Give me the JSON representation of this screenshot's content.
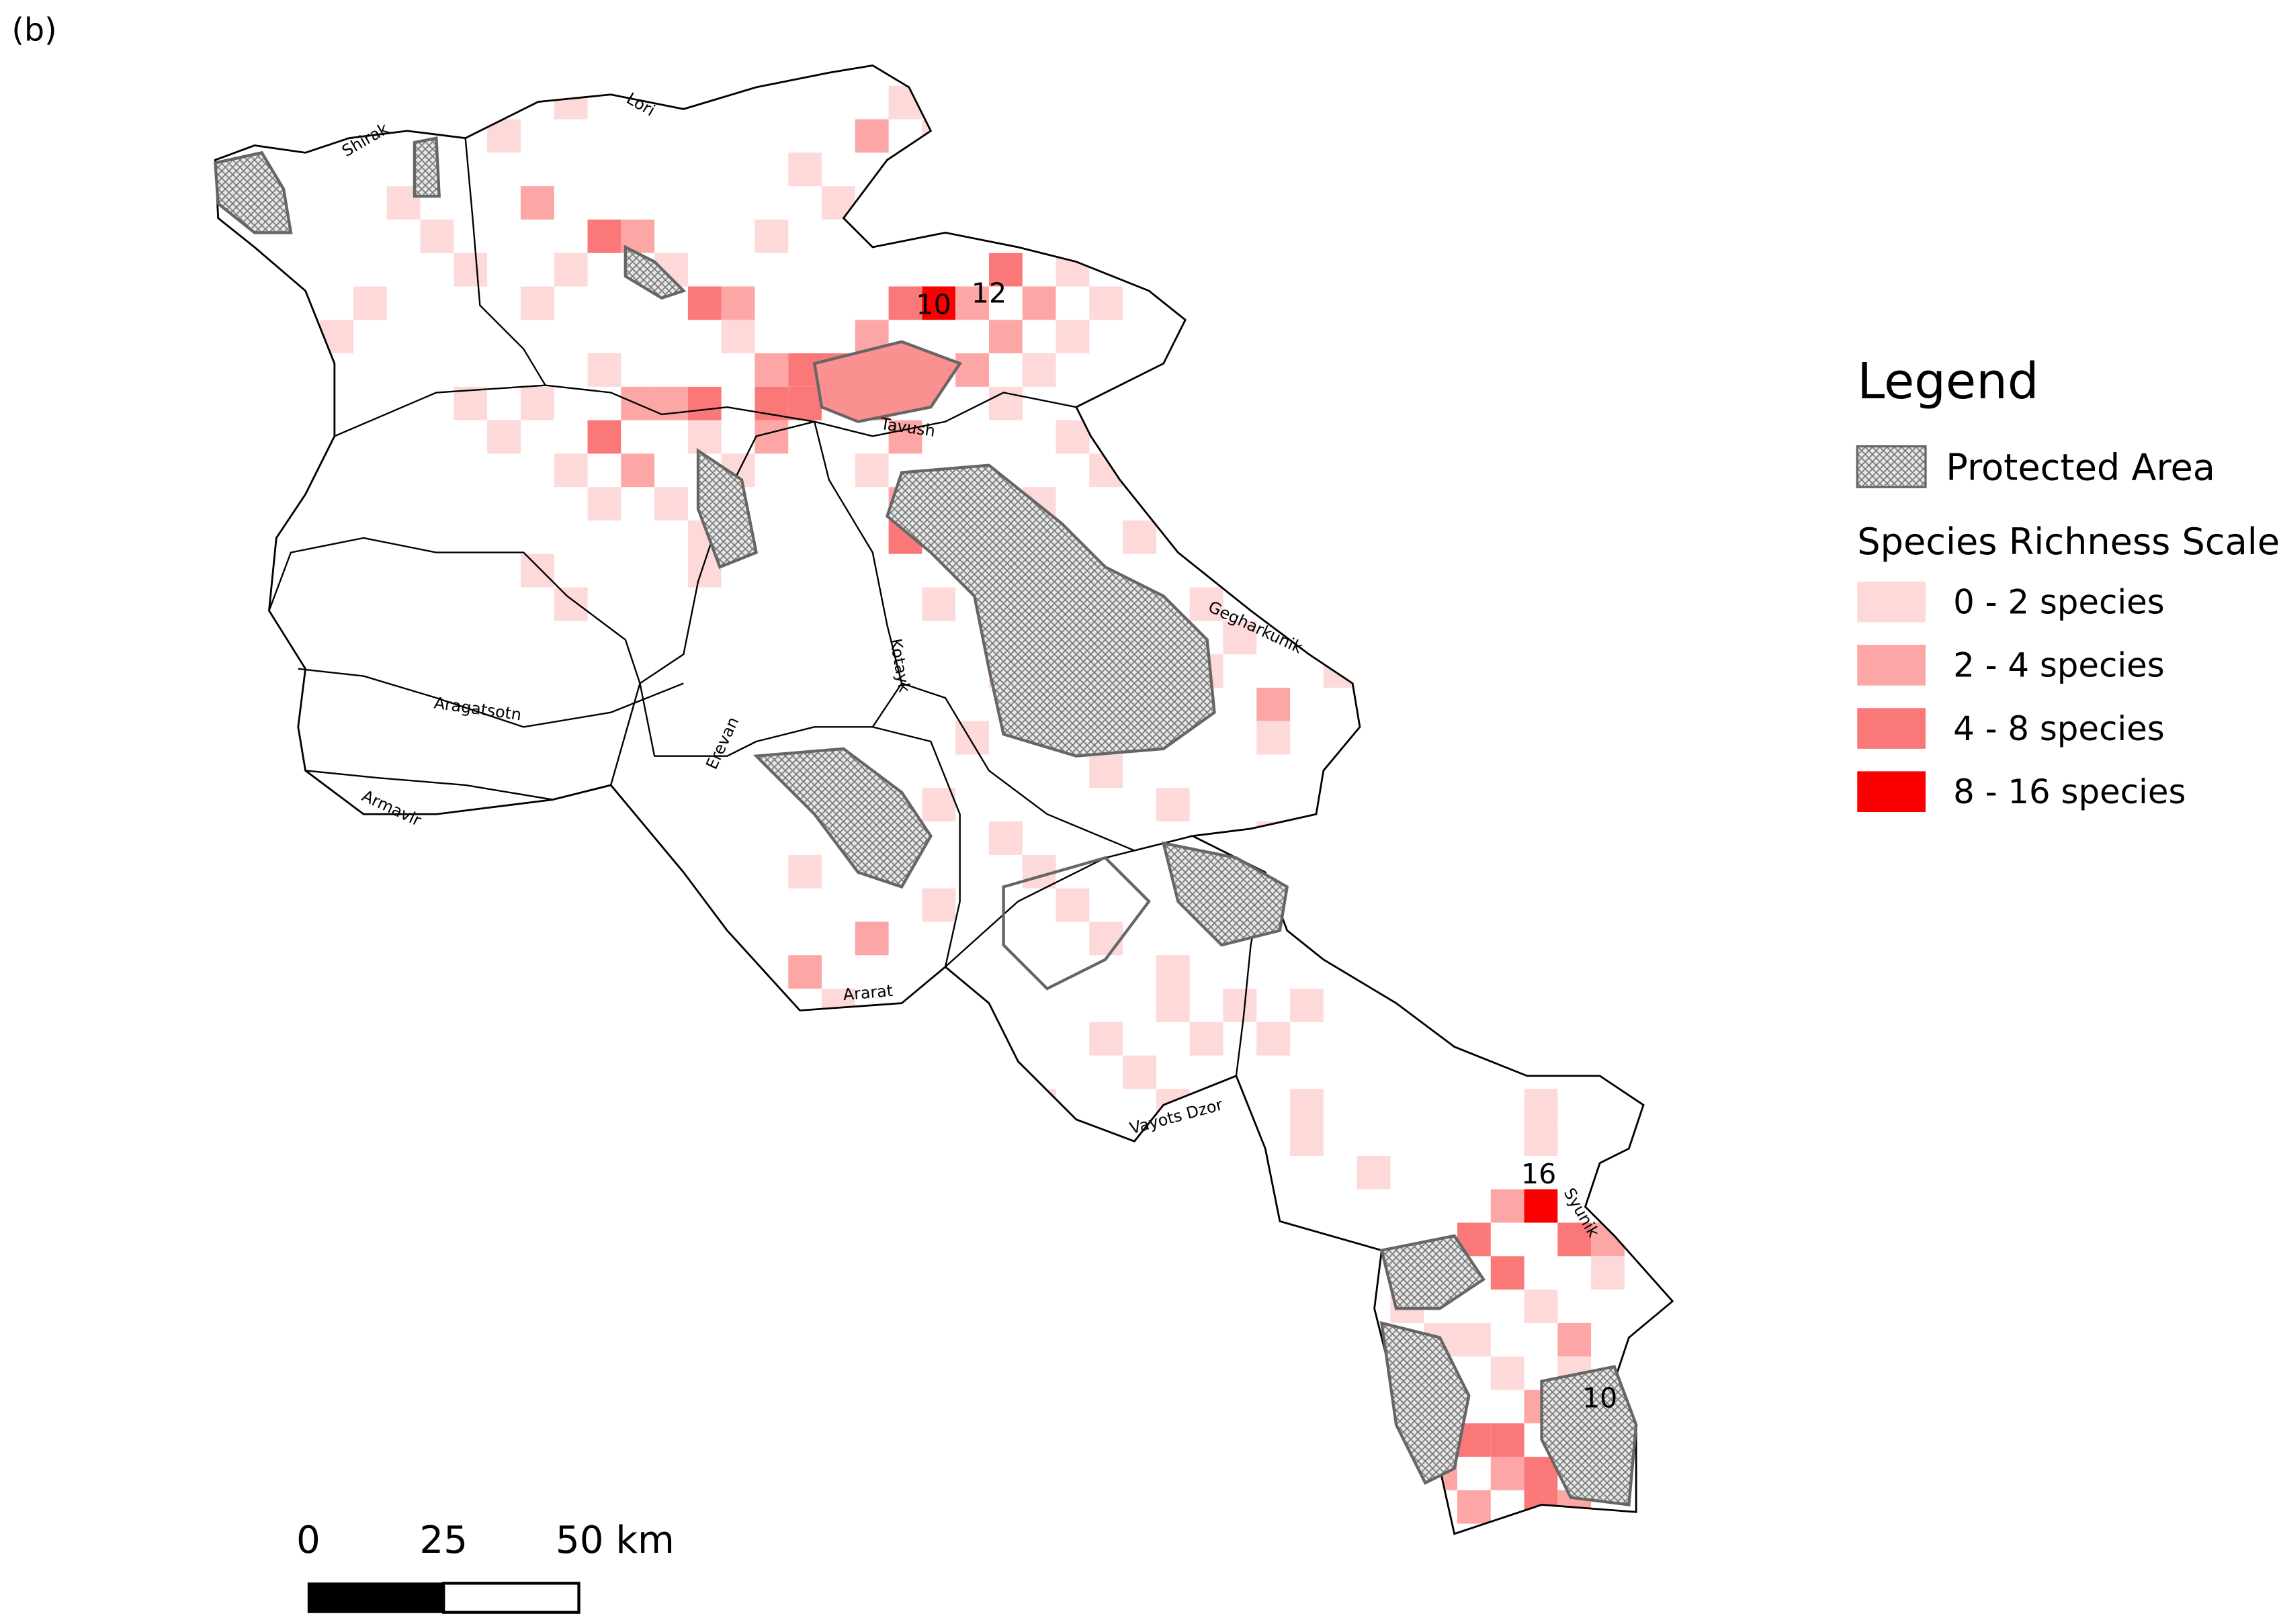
{
  "panel_label": "(b)",
  "regions": [
    "Shirak",
    "Lori",
    "Tavush",
    "Gegharkunik",
    "Kotayk",
    "Aragatsotn",
    "Erevan",
    "Armavir",
    "Ararat",
    "Vayots Dzor",
    "Syunik"
  ],
  "annotations": [
    "10",
    "12",
    "16",
    "10"
  ],
  "legend": {
    "title": "Legend",
    "protected_area": "Protected Area",
    "scale_title": "Species Richness Scale",
    "classes": [
      {
        "label": "0 - 2 species",
        "color": "#fdd9d9"
      },
      {
        "label": "2 - 4 species",
        "color": "#fca6a6"
      },
      {
        "label": "4 - 8 species",
        "color": "#fb7878"
      },
      {
        "label": "8 - 16 species",
        "color": "#fb0000"
      }
    ]
  },
  "scale_bar": {
    "ticks": [
      "0",
      "25",
      "50 km"
    ]
  }
}
